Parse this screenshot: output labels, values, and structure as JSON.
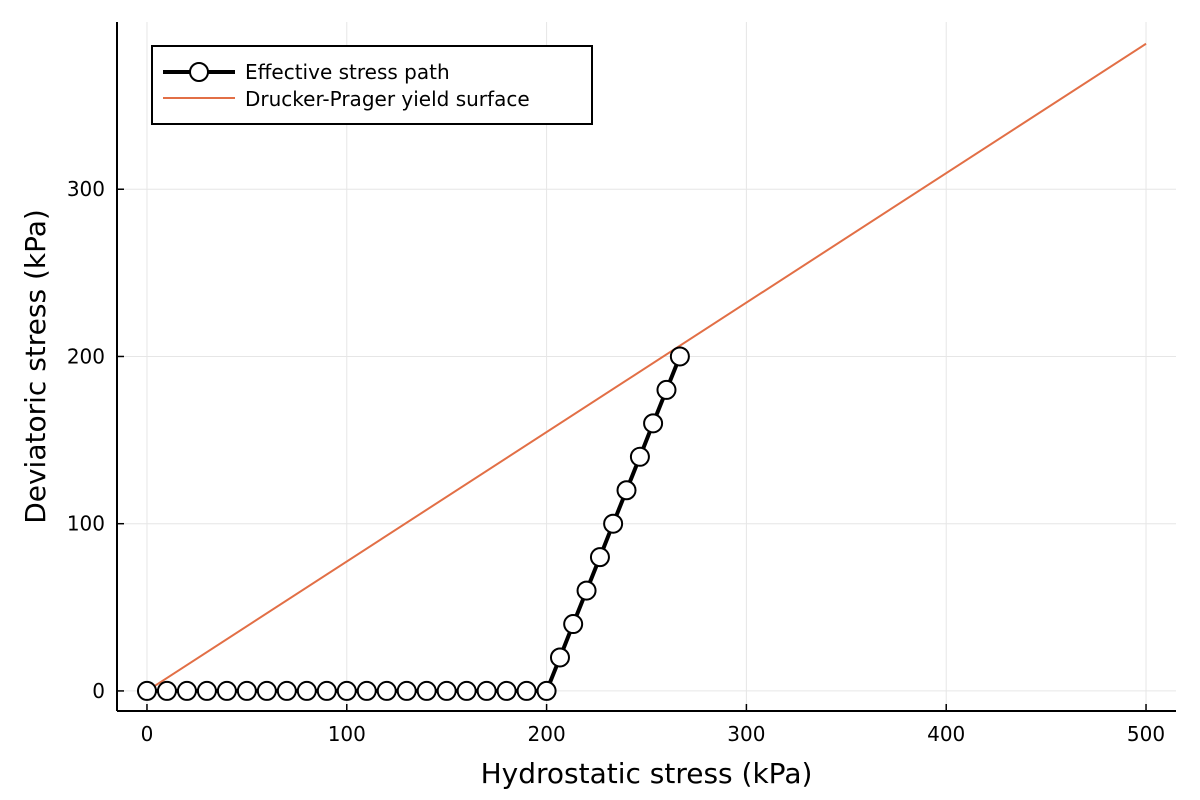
{
  "chart_data": {
    "type": "line",
    "xlabel": "Hydrostatic stress (kPa)",
    "ylabel": "Deviatoric stress (kPa)",
    "xlim": [
      -15,
      515
    ],
    "ylim": [
      -12,
      400
    ],
    "xticks": [
      0,
      100,
      200,
      300,
      400,
      500
    ],
    "yticks": [
      0,
      100,
      200,
      300
    ],
    "grid": true,
    "legend_position": "top-left",
    "series": [
      {
        "name": "Effective stress path",
        "color": "#000000",
        "marker": "circle",
        "x": [
          0,
          10,
          20,
          30,
          40,
          50,
          60,
          70,
          80,
          90,
          100,
          110,
          120,
          130,
          140,
          150,
          160,
          170,
          180,
          190,
          200,
          206.7,
          213.3,
          220,
          226.7,
          233.3,
          240,
          246.7,
          253.3,
          260,
          266.7
        ],
        "y": [
          0,
          0,
          0,
          0,
          0,
          0,
          0,
          0,
          0,
          0,
          0,
          0,
          0,
          0,
          0,
          0,
          0,
          0,
          0,
          0,
          0,
          20,
          40,
          60,
          80,
          100,
          120,
          140,
          160,
          180,
          200
        ]
      },
      {
        "name": "Drucker-Prager yield surface",
        "color": "#e26f46",
        "marker": "none",
        "x": [
          0,
          500
        ],
        "y": [
          0,
          387
        ]
      }
    ]
  }
}
